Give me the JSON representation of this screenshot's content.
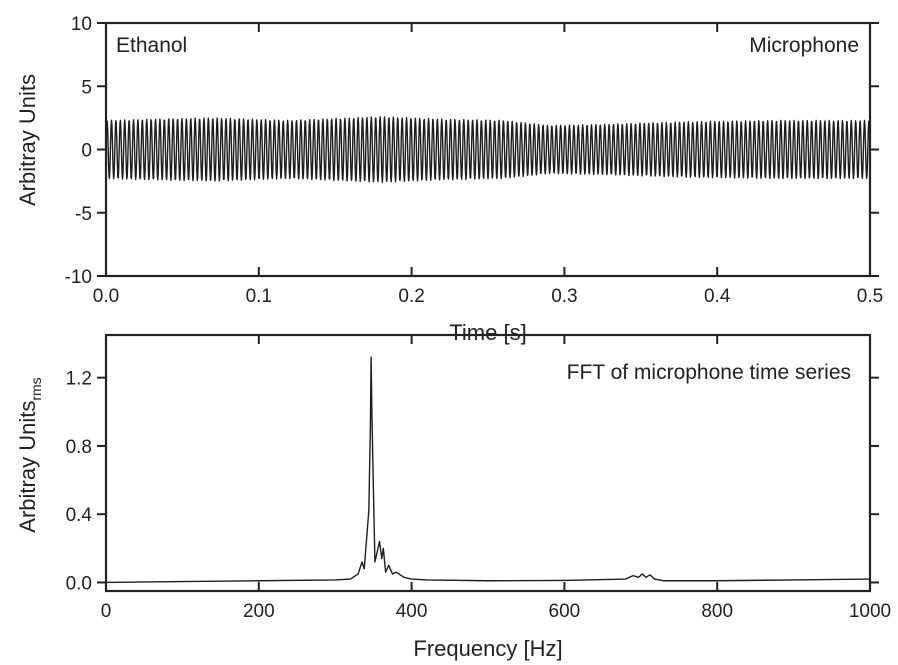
{
  "chart_data": [
    {
      "type": "line",
      "annotations": [
        "Ethanol",
        "Microphone"
      ],
      "xlabel": "Time [s]",
      "ylabel": "Arbitray Units",
      "xlim": [
        0.0,
        0.5
      ],
      "ylim": [
        -10,
        10
      ],
      "xticks": [
        "0.0",
        "0.1",
        "0.2",
        "0.3",
        "0.4",
        "0.5"
      ],
      "yticks": [
        "-10",
        "-5",
        "0",
        "5",
        "10"
      ],
      "grid": false,
      "series": [
        {
          "signal": "oscillation",
          "frequency_hz": 347,
          "envelope": {
            "t": [
              0.0,
              0.03,
              0.07,
              0.12,
              0.18,
              0.22,
              0.26,
              0.29,
              0.33,
              0.38,
              0.44,
              0.5
            ],
            "amplitude": [
              2.3,
              2.4,
              2.5,
              2.3,
              2.6,
              2.4,
              2.3,
              1.9,
              2.0,
              2.2,
              2.3,
              2.3
            ]
          }
        }
      ]
    },
    {
      "type": "line",
      "title": "FFT of microphone time series",
      "xlabel": "Frequency [Hz]",
      "ylabel": "Arbitray Units",
      "ylabel_subscript": "rms",
      "xlim": [
        0,
        1000
      ],
      "ylim": [
        -0.05,
        1.45
      ],
      "xticks": [
        "0",
        "200",
        "400",
        "600",
        "800",
        "1000"
      ],
      "yticks": [
        "0.0",
        "0.4",
        "0.8",
        "1.2"
      ],
      "grid": false,
      "series": [
        {
          "x": [
            0,
            100,
            200,
            300,
            320,
            330,
            335,
            338,
            341,
            344,
            346,
            347,
            348,
            350,
            352,
            355,
            358,
            361,
            363,
            366,
            370,
            375,
            380,
            390,
            400,
            420,
            500,
            600,
            680,
            690,
            697,
            702,
            707,
            712,
            718,
            730,
            800,
            900,
            1000
          ],
          "y": [
            0.0,
            0.005,
            0.01,
            0.015,
            0.02,
            0.05,
            0.12,
            0.08,
            0.25,
            0.42,
            0.9,
            1.32,
            1.0,
            0.55,
            0.12,
            0.18,
            0.24,
            0.14,
            0.2,
            0.06,
            0.1,
            0.05,
            0.06,
            0.03,
            0.02,
            0.015,
            0.01,
            0.012,
            0.02,
            0.04,
            0.03,
            0.05,
            0.03,
            0.045,
            0.02,
            0.01,
            0.01,
            0.015,
            0.02
          ]
        }
      ]
    }
  ]
}
